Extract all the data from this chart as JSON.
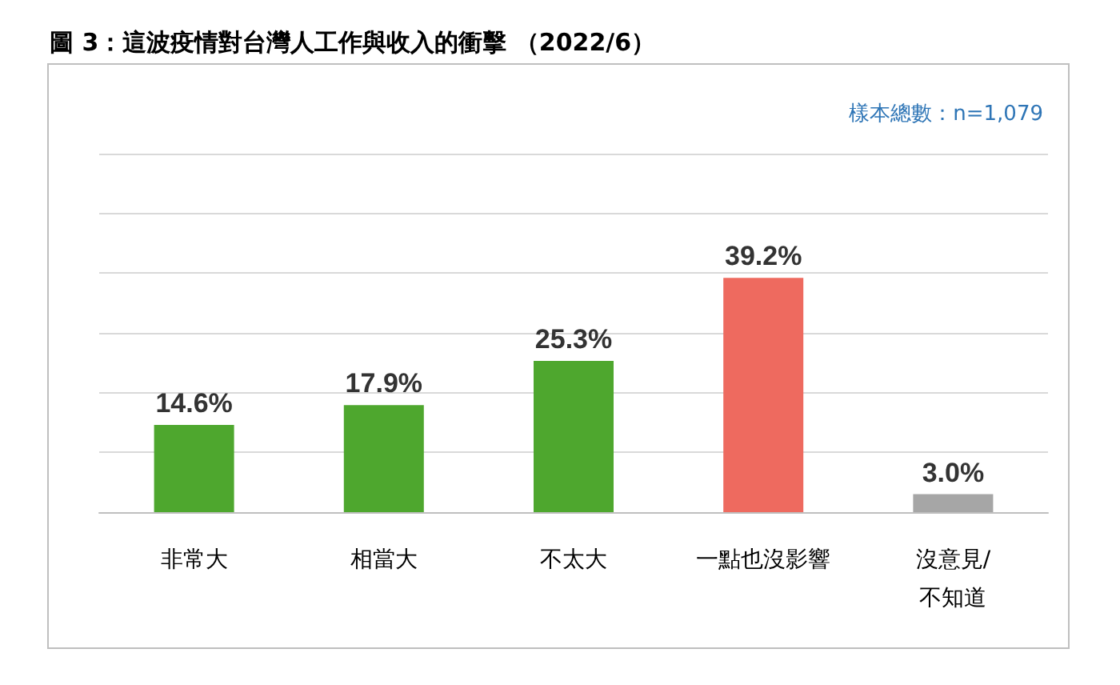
{
  "chart_data": {
    "type": "bar",
    "title": "圖 3：這波疫情對台灣人工作與收入的衝擊 （2022/6）",
    "annotations": [
      "樣本總數：n=1,079"
    ],
    "categories": [
      "非常大",
      "相當大",
      "不太大",
      "一點也沒影響",
      "沒意見/不知道"
    ],
    "values": [
      14.6,
      17.9,
      25.3,
      39.2,
      3.0
    ],
    "colors": [
      "#4ea72e",
      "#4ea72e",
      "#4ea72e",
      "#ee6a5f",
      "#a6a6a6"
    ],
    "ylim": [
      0,
      60
    ],
    "yticks": [
      {
        "value": 0,
        "label": null
      },
      {
        "value": 10,
        "label": null
      },
      {
        "value": 20,
        "label": null
      },
      {
        "value": 30,
        "label": null
      },
      {
        "value": 40,
        "label": null
      },
      {
        "value": 50,
        "label": null
      },
      {
        "value": 60,
        "label": null
      }
    ],
    "value_labels": [
      "14.6%",
      "17.9%",
      "25.3%",
      "39.2%",
      "3.0%"
    ],
    "grid": "y",
    "tick_labels": "x"
  }
}
